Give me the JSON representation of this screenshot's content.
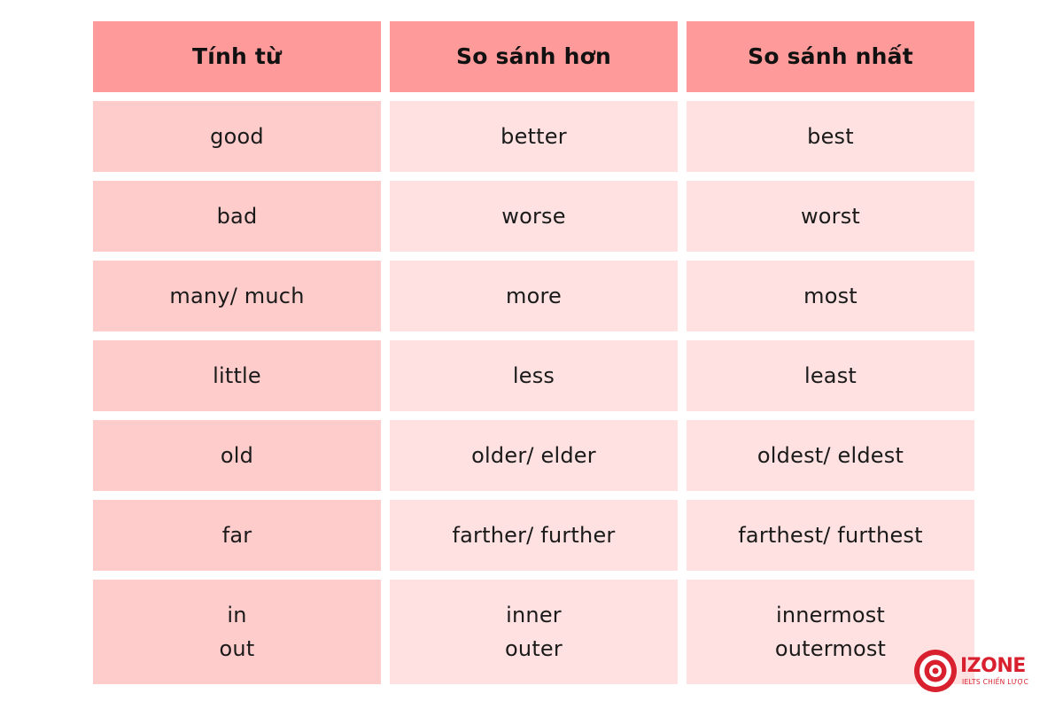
{
  "table": {
    "headers": [
      "Tính từ",
      "So sánh hơn",
      "So sánh nhất"
    ],
    "rows": [
      [
        "good",
        "better",
        "best"
      ],
      [
        "bad",
        "worse",
        "worst"
      ],
      [
        "many/ much",
        "more",
        "most"
      ],
      [
        "little",
        "less",
        "least"
      ],
      [
        "old",
        "older/ elder",
        "oldest/ eldest"
      ],
      [
        "far",
        "farther/ further",
        "farthest/ furthest"
      ],
      [
        "in\nout",
        "inner\nouter",
        "innermost\noutermost"
      ]
    ]
  },
  "logo": {
    "name": "IZONE",
    "tagline": "IELTS CHIẾN LƯỢC"
  },
  "colors": {
    "header_bg": "#ff9a9a",
    "first_col_bg": "#ffcccc",
    "other_col_bg": "#ffe1e1",
    "brand_red": "#d8202e"
  }
}
